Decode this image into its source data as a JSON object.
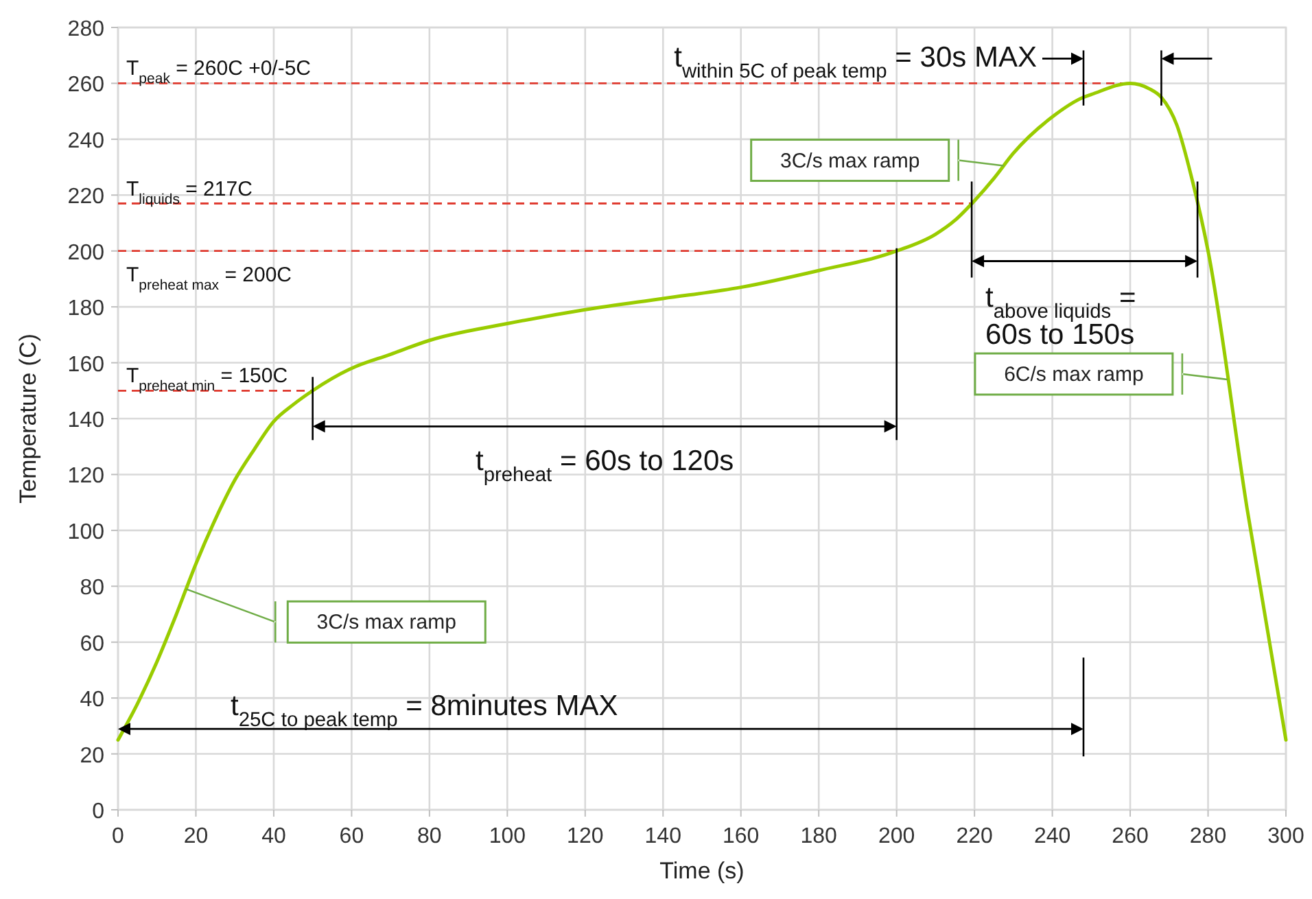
{
  "chart_data": {
    "type": "line",
    "xlabel": "Time (s)",
    "ylabel": "Temperature (C)",
    "series": [
      {
        "color": "#99cc00",
        "x": [
          0,
          5,
          10,
          15,
          20,
          25,
          30,
          35,
          40,
          45,
          50,
          60,
          70,
          80,
          100,
          120,
          140,
          160,
          180,
          200,
          210,
          215,
          220,
          225,
          230,
          240,
          248,
          250,
          260,
          265,
          268,
          272,
          276,
          280,
          290,
          300
        ],
        "values": [
          25,
          38,
          53,
          70,
          88,
          104,
          118,
          129,
          139,
          145,
          150,
          158,
          163,
          168,
          174,
          179,
          183,
          187,
          193,
          200,
          206,
          211,
          218,
          226,
          235,
          248,
          255,
          256,
          260,
          258,
          255,
          245,
          225,
          200,
          108,
          25
        ]
      }
    ],
    "xlim": [
      0,
      300
    ],
    "ylim": [
      0,
      280
    ],
    "xticks": [
      0,
      20,
      40,
      60,
      80,
      100,
      120,
      140,
      160,
      180,
      200,
      220,
      240,
      260,
      280,
      300
    ],
    "yticks": [
      0,
      20,
      40,
      60,
      80,
      100,
      120,
      140,
      160,
      180,
      200,
      220,
      240,
      260,
      280
    ],
    "grid": true,
    "marker": "none",
    "line_style": "solid",
    "ref_lines": [
      {
        "axis": "y",
        "value": 260,
        "label": "T$_{peak}$ = 260C +0/-5C",
        "color": "#e03c31",
        "line_style": "dashed"
      },
      {
        "axis": "y",
        "value": 217,
        "label": "T$_{liquids}$ = 217C",
        "color": "#e03c31",
        "line_style": "dashed"
      },
      {
        "axis": "y",
        "value": 200,
        "label": "T$_{preheat max}$ = 200C",
        "color": "#e03c31",
        "line_style": "dashed"
      },
      {
        "axis": "y",
        "value": 150,
        "label": "T$_{preheat min}$ = 150C",
        "color": "#e03c31",
        "line_style": "dashed"
      }
    ],
    "annotations": [
      "t$_{within 5C of peak temp}$ = 30s MAX",
      "t$_{above liquids}$ =\n60s to 150s",
      "t$_{preheat}$ = 60s to 120s",
      "t$_{25C to peak temp}$ = 8minutes MAX",
      "3C/s max ramp",
      "3C/s max ramp",
      "6C/s max ramp"
    ]
  }
}
